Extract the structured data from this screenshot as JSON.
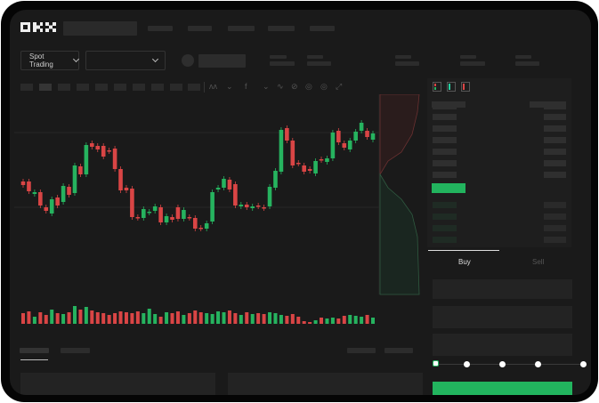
{
  "brand": {
    "logo_text": "OKX"
  },
  "toolbar": {
    "mode_label": "Spot Trading",
    "pair_select_value": ""
  },
  "trade": {
    "tabs": [
      {
        "label": "Buy",
        "active": true
      },
      {
        "label": "Sell",
        "active": false
      }
    ],
    "slider_percent": 0,
    "slider_stops": [
      0,
      25,
      50,
      75,
      100
    ]
  },
  "colors": {
    "up": "#26b35f",
    "down": "#d94545",
    "background": "#1a1a1a",
    "frame": "#050505",
    "primary_button": "#22b45e"
  },
  "chart_data": {
    "type": "candlestick",
    "ohlc_with_volume": true,
    "candles": [
      [
        97,
        93,
        "down"
      ],
      [
        97,
        86,
        "down"
      ],
      [
        85,
        83,
        "up"
      ],
      [
        85,
        70,
        "down"
      ],
      [
        68,
        64,
        "down"
      ],
      [
        61,
        77,
        "up"
      ],
      [
        79,
        70,
        "down"
      ],
      [
        74,
        92,
        "up"
      ],
      [
        91,
        82,
        "down"
      ],
      [
        84,
        115,
        "up"
      ],
      [
        114,
        105,
        "down"
      ],
      [
        105,
        138,
        "up"
      ],
      [
        140,
        136,
        "down"
      ],
      [
        137,
        133,
        "down"
      ],
      [
        137,
        125,
        "down"
      ],
      [
        132,
        131,
        "down"
      ],
      [
        134,
        111,
        "down"
      ],
      [
        111,
        87,
        "down"
      ],
      [
        90,
        87,
        "down"
      ],
      [
        89,
        57,
        "down"
      ],
      [
        57,
        56,
        "down"
      ],
      [
        56,
        66,
        "up"
      ],
      [
        62,
        63,
        "up"
      ],
      [
        64,
        69,
        "up"
      ],
      [
        68,
        51,
        "down"
      ],
      [
        51,
        58,
        "up"
      ],
      [
        57,
        54,
        "down"
      ],
      [
        68,
        55,
        "down"
      ],
      [
        55,
        65,
        "up"
      ],
      [
        57,
        56,
        "down"
      ],
      [
        56,
        44,
        "down"
      ],
      [
        45,
        44,
        "down"
      ],
      [
        44,
        50,
        "up"
      ],
      [
        52,
        85,
        "up"
      ],
      [
        88,
        90,
        "up"
      ],
      [
        90,
        100,
        "up"
      ],
      [
        99,
        88,
        "down"
      ],
      [
        94,
        70,
        "down"
      ],
      [
        69,
        71,
        "up"
      ],
      [
        71,
        68,
        "down"
      ],
      [
        67,
        69,
        "up"
      ],
      [
        70,
        69,
        "down"
      ],
      [
        68,
        67,
        "down"
      ],
      [
        69,
        91,
        "up"
      ],
      [
        90,
        109,
        "up"
      ],
      [
        108,
        155,
        "up"
      ],
      [
        157,
        143,
        "down"
      ],
      [
        143,
        115,
        "down"
      ],
      [
        118,
        117,
        "down"
      ],
      [
        115,
        108,
        "down"
      ],
      [
        111,
        109,
        "down"
      ],
      [
        106,
        120,
        "up"
      ],
      [
        122,
        121,
        "down"
      ],
      [
        119,
        123,
        "up"
      ],
      [
        123,
        152,
        "up"
      ],
      [
        154,
        141,
        "down"
      ],
      [
        140,
        135,
        "down"
      ],
      [
        133,
        143,
        "up"
      ],
      [
        143,
        153,
        "up"
      ],
      [
        154,
        163,
        "up"
      ],
      [
        154,
        147,
        "down"
      ],
      [
        144,
        151,
        "up"
      ]
    ],
    "volumes": [
      12,
      14,
      8,
      13,
      10,
      16,
      12,
      11,
      13,
      20,
      16,
      19,
      15,
      13,
      12,
      10,
      12,
      14,
      13,
      12,
      14,
      12,
      17,
      11,
      8,
      13,
      12,
      14,
      10,
      12,
      15,
      13,
      12,
      11,
      14,
      13,
      15,
      12,
      10,
      13,
      11,
      12,
      11,
      13,
      12,
      10,
      9,
      11,
      8,
      3,
      2,
      4,
      7,
      6,
      7,
      6,
      9,
      10,
      9,
      8,
      10,
      7
    ]
  }
}
